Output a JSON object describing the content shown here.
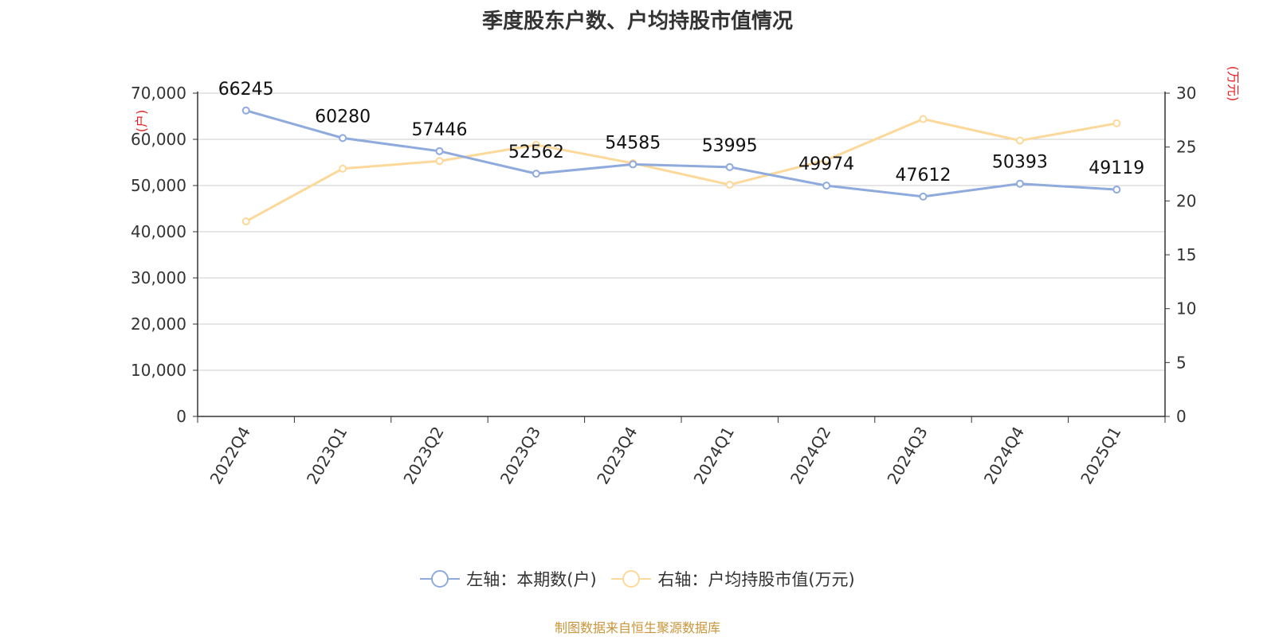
{
  "chart_data": {
    "type": "line",
    "title": "季度股东户数、户均持股市值情况",
    "categories": [
      "2022Q4",
      "2023Q1",
      "2023Q2",
      "2023Q3",
      "2023Q4",
      "2024Q1",
      "2024Q2",
      "2024Q3",
      "2024Q4",
      "2025Q1"
    ],
    "left_axis": {
      "unit": "(户)",
      "ylim": [
        0,
        70000
      ],
      "ticks": [
        "0",
        "10,000",
        "20,000",
        "30,000",
        "40,000",
        "50,000",
        "60,000",
        "70,000"
      ]
    },
    "right_axis": {
      "unit": "(万元)",
      "ylim": [
        0,
        30
      ],
      "ticks": [
        "0",
        "5",
        "10",
        "15",
        "20",
        "25",
        "30"
      ]
    },
    "series": [
      {
        "name": "左轴：本期数(户)",
        "axis": "left",
        "color": "#8faadc",
        "values": [
          66245,
          60280,
          57446,
          52562,
          54585,
          53995,
          49974,
          47612,
          50393,
          49119
        ],
        "labels": [
          "66245",
          "60280",
          "57446",
          "52562",
          "54585",
          "53995",
          "49974",
          "47612",
          "50393",
          "49119"
        ]
      },
      {
        "name": "右轴：户均持股市值(万元)",
        "axis": "right",
        "color": "#fcd99a",
        "values": [
          18.1,
          23.0,
          23.7,
          25.2,
          23.5,
          21.5,
          23.8,
          27.6,
          25.6,
          27.2
        ]
      }
    ],
    "grid": true,
    "legend_position": "bottom"
  },
  "source": "制图数据来自恒生聚源数据库",
  "colors": {
    "unit_label": "#e02020",
    "axis": "#333333",
    "grid": "#cccccc"
  }
}
